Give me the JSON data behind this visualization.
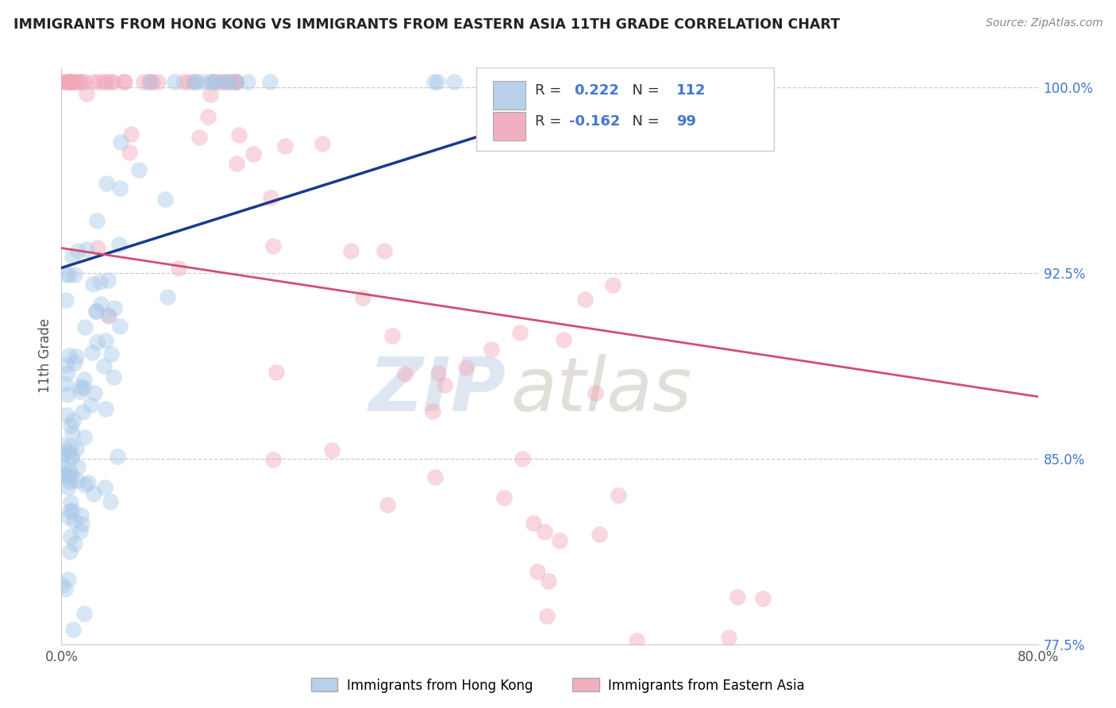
{
  "title": "IMMIGRANTS FROM HONG KONG VS IMMIGRANTS FROM EASTERN ASIA 11TH GRADE CORRELATION CHART",
  "source": "Source: ZipAtlas.com",
  "ylabel": "11th Grade",
  "blue_label": "Immigrants from Hong Kong",
  "pink_label": "Immigrants from Eastern Asia",
  "blue_R": 0.222,
  "blue_N": 112,
  "pink_R": -0.162,
  "pink_N": 99,
  "blue_color": "#a8c8e8",
  "pink_color": "#f0a8b8",
  "blue_line_color": "#1a3a8a",
  "pink_line_color": "#d05070",
  "xlim": [
    0.0,
    0.8
  ],
  "ylim": [
    0.775,
    1.008
  ],
  "yticks": [
    0.775,
    0.85,
    0.925,
    1.0
  ],
  "ytick_labels": [
    "77.5%",
    "85.0%",
    "92.5%",
    "100.0%"
  ],
  "grid_color": "#cccccc",
  "background_color": "#ffffff",
  "watermark_zip": "ZIP",
  "watermark_atlas": "atlas",
  "legend_blue_line": "R =  0.222   N = 112",
  "legend_pink_line": "R = -0.162   N =  99"
}
